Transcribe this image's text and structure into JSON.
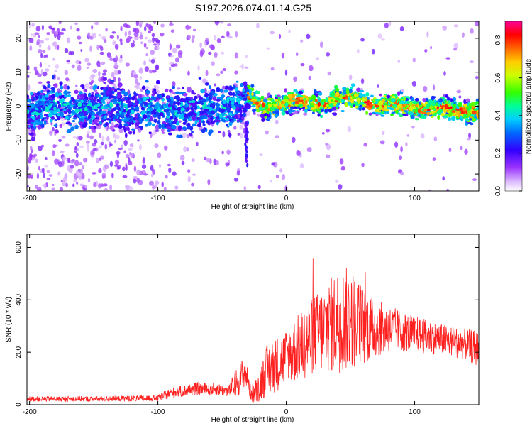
{
  "figure": {
    "title": "S197.2026.074.01.14.G25"
  },
  "chart_data": [
    {
      "type": "heatmap",
      "title": "S197.2026.074.01.14.G25",
      "xlabel": "Height of straight line (km)",
      "ylabel": "Frequency (Hz)",
      "xlim": [
        -202,
        150
      ],
      "ylim": [
        -25,
        25
      ],
      "xticks": [
        -200,
        -100,
        0,
        100
      ],
      "yticks": [
        -20,
        -10,
        0,
        10,
        20
      ],
      "colorbar": {
        "label": "Normalized spectral amplitude",
        "range": [
          0.0,
          0.9
        ],
        "ticks": [
          "0.0",
          "0.2",
          "0.4",
          "0.6",
          "0.8"
        ],
        "colors": [
          "#ffffff",
          "#cc99ff",
          "#8000ff",
          "#2020ff",
          "#00ccff",
          "#00ff80",
          "#80ff00",
          "#ffff00",
          "#ff8000",
          "#ff0000",
          "#ff0080"
        ]
      },
      "ridge": {
        "description_points_x": [
          -202,
          -150,
          -100,
          -60,
          -40,
          -30,
          -20,
          0,
          20,
          40,
          60,
          80,
          100,
          120,
          150
        ],
        "center_freq": [
          -1,
          0,
          -1,
          -1,
          1,
          2,
          0,
          1,
          1,
          2,
          2,
          0,
          0,
          -1,
          -1
        ]
      }
    },
    {
      "type": "line",
      "xlabel": "Height of straight line (km)",
      "ylabel": "SNR (10 * v/v)",
      "xlim": [
        -202,
        150
      ],
      "ylim": [
        0,
        650
      ],
      "xticks": [
        -200,
        -100,
        0,
        100
      ],
      "yticks": [
        0,
        200,
        400,
        600
      ],
      "series": [
        {
          "name": "SNR",
          "color": "#ff2020",
          "envelope_x": [
            -202,
            -150,
            -100,
            -90,
            -70,
            -55,
            -45,
            -38,
            -32,
            -28,
            -25,
            -15,
            0,
            10,
            20,
            30,
            40,
            50,
            60,
            70,
            80,
            90,
            100,
            110,
            120,
            130,
            140,
            150
          ],
          "envelope_mean": [
            22,
            22,
            25,
            45,
            60,
            60,
            50,
            90,
            130,
            50,
            40,
            130,
            180,
            220,
            260,
            290,
            320,
            330,
            300,
            290,
            290,
            280,
            270,
            260,
            250,
            240,
            230,
            210
          ],
          "envelope_amp": [
            10,
            10,
            12,
            20,
            25,
            25,
            20,
            60,
            60,
            30,
            40,
            100,
            110,
            130,
            150,
            170,
            200,
            200,
            150,
            110,
            90,
            80,
            70,
            65,
            60,
            60,
            60,
            70
          ]
        }
      ]
    }
  ]
}
